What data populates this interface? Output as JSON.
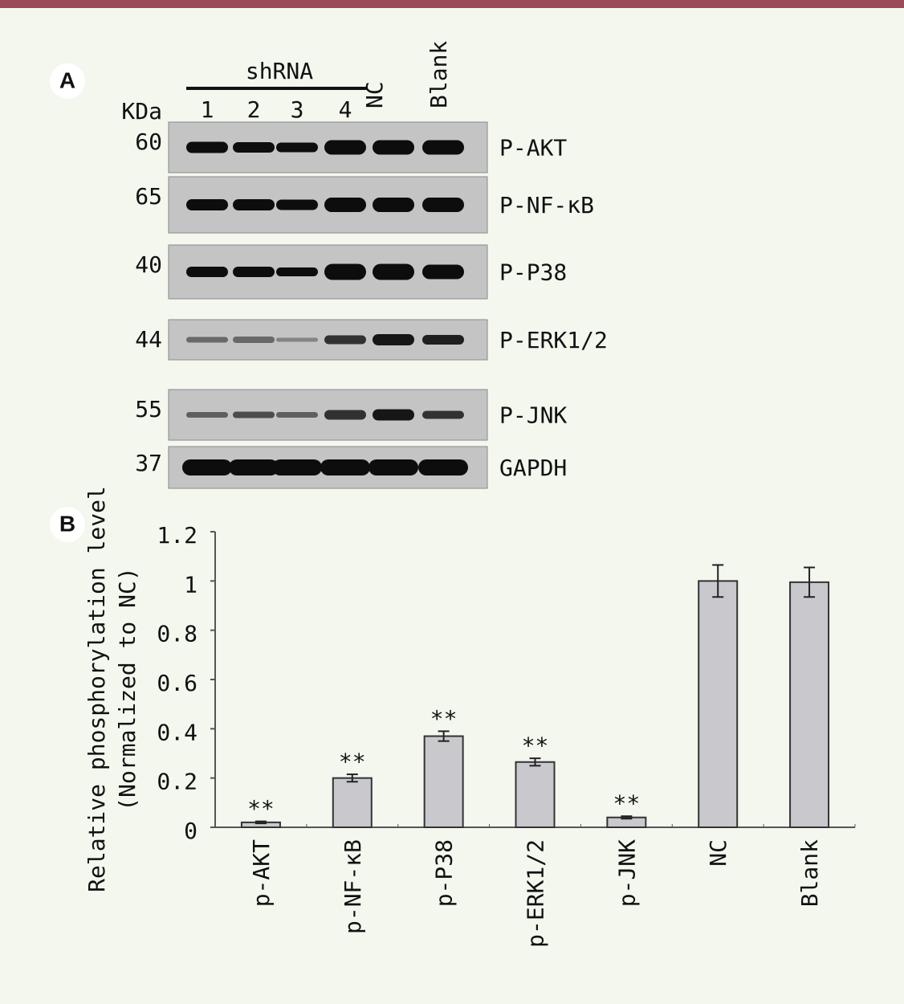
{
  "blot": {
    "panel_label": "A",
    "group_label": "shRNA",
    "kda_label": "KDa",
    "lanes": [
      "1",
      "2",
      "3",
      "4",
      "NC",
      "Blank"
    ],
    "rows": [
      {
        "kda": "60",
        "label": "P-AKT"
      },
      {
        "kda": "65",
        "label": "P-NF-κB"
      },
      {
        "kda": "40",
        "label": "P-P38"
      },
      {
        "kda": "44",
        "label": "P-ERK1/2"
      },
      {
        "kda": "55",
        "label": "P-JNK"
      },
      {
        "kda": "37",
        "label": "GAPDH"
      }
    ]
  },
  "chart_data": {
    "type": "bar",
    "panel_label": "B",
    "y_label": [
      "Relative phosphorylation level",
      "(Normalized to NC)"
    ],
    "categories": [
      "p-AKT",
      "p-NF-κB",
      "p-P38",
      "p-ERK1/2",
      "p-JNK",
      "NC",
      "Blank"
    ],
    "values": [
      0.02,
      0.2,
      0.37,
      0.265,
      0.04,
      1.0,
      0.995
    ],
    "errors": [
      0.004,
      0.015,
      0.02,
      0.015,
      0.005,
      0.065,
      0.06
    ],
    "significance": [
      "**",
      "**",
      "**",
      "**",
      "**",
      null,
      null
    ],
    "color": "#c9c9cd",
    "ylim": [
      0,
      1.2
    ],
    "yticks": [
      0,
      0.2,
      0.4,
      0.6,
      0.8,
      1,
      1.2
    ]
  }
}
